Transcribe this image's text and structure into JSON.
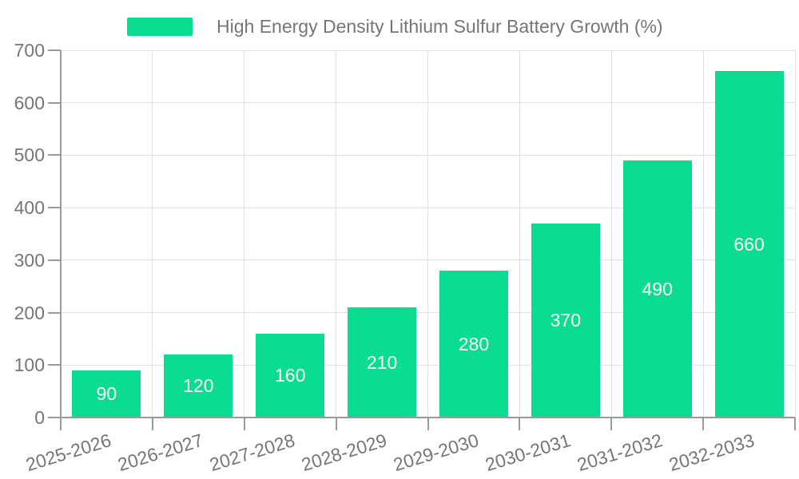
{
  "chart_data": {
    "type": "bar",
    "title": "High Energy Density Lithium Sulfur Battery Growth (%)",
    "categories": [
      "2025-2026",
      "2026-2027",
      "2027-2028",
      "2028-2029",
      "2029-2030",
      "2030-2031",
      "2031-2032",
      "2032-2033"
    ],
    "series": [
      {
        "name": "High Energy Density Lithium Sulfur Battery Growth (%)",
        "values": [
          90,
          120,
          160,
          210,
          280,
          370,
          490,
          660
        ]
      }
    ],
    "ylabel": "",
    "xlabel": "",
    "ylim": [
      0,
      700
    ],
    "ytick_step": 100,
    "yticks": [
      0,
      100,
      200,
      300,
      400,
      500,
      600,
      700
    ],
    "grid": true,
    "legend_position": "top",
    "bar_labels_visible": true,
    "x_label_rotation": -17,
    "colors": {
      "bar": "#0ADC91",
      "value_label": "#FFFFFF",
      "axis": "#9A9A9A",
      "grid": "#E2E2E2",
      "text": "#757575",
      "background": "#FFFFFF"
    }
  }
}
